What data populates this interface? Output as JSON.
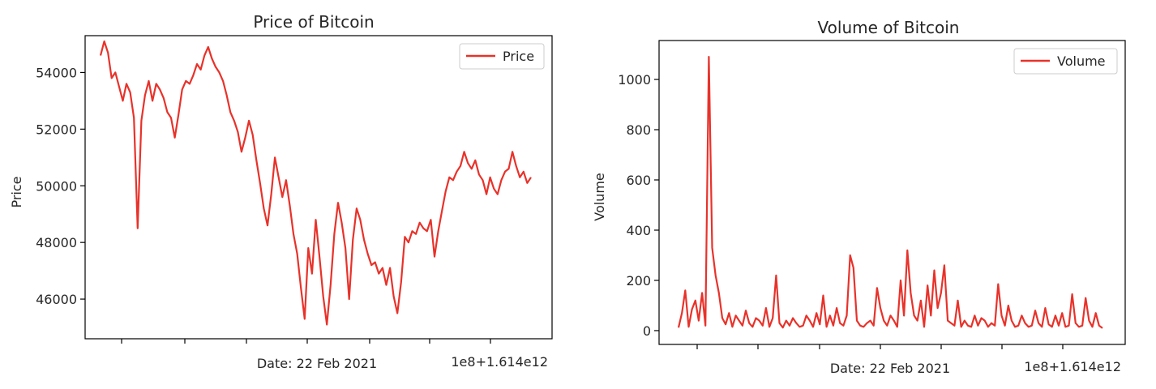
{
  "chart_data": [
    {
      "type": "line",
      "title": "Price of Bitcoin",
      "xlabel": "Date: 22 Feb 2021",
      "ylabel": "Price",
      "x_offset_label": "1e8+1.614e12",
      "yticks": [
        46000,
        48000,
        50000,
        52000,
        54000
      ],
      "ylim": [
        44600,
        55300
      ],
      "legend": "top-right",
      "grid": false,
      "series": [
        {
          "name": "Price",
          "color": "#e8322a",
          "values": [
            54600,
            55100,
            54700,
            53800,
            54000,
            53500,
            53000,
            53600,
            53300,
            52400,
            48500,
            52300,
            53200,
            53700,
            53000,
            53600,
            53400,
            53100,
            52600,
            52400,
            51700,
            52500,
            53400,
            53700,
            53600,
            53900,
            54300,
            54100,
            54600,
            54900,
            54500,
            54200,
            54000,
            53700,
            53200,
            52600,
            52300,
            51900,
            51200,
            51700,
            52300,
            51800,
            50900,
            50100,
            49200,
            48600,
            49700,
            51000,
            50300,
            49600,
            50200,
            49300,
            48300,
            47600,
            46400,
            45300,
            47800,
            46900,
            48800,
            47500,
            46100,
            45100,
            46500,
            48300,
            49400,
            48700,
            47800,
            46000,
            48100,
            49200,
            48800,
            48100,
            47600,
            47200,
            47300,
            46900,
            47100,
            46500,
            47100,
            46100,
            45500,
            46600,
            48200,
            48000,
            48400,
            48300,
            48700,
            48500,
            48400,
            48800,
            47500,
            48400,
            49100,
            49800,
            50300,
            50200,
            50500,
            50700,
            51200,
            50800,
            50600,
            50900,
            50400,
            50200,
            49700,
            50300,
            49900,
            49700,
            50200,
            50500,
            50600,
            51200,
            50700,
            50300,
            50500,
            50100,
            50300
          ]
        }
      ]
    },
    {
      "type": "line",
      "title": "Volume of Bitcoin",
      "xlabel": "Date: 22 Feb 2021",
      "ylabel": "Volume",
      "x_offset_label": "1e8+1.614e12",
      "yticks": [
        0,
        200,
        400,
        600,
        800,
        1000
      ],
      "ylim": [
        -55,
        1155
      ],
      "legend": "top-right",
      "grid": false,
      "series": [
        {
          "name": "Volume",
          "color": "#e8322a",
          "values": [
            12,
            70,
            160,
            15,
            85,
            120,
            40,
            150,
            20,
            1090,
            330,
            220,
            150,
            50,
            25,
            70,
            15,
            60,
            40,
            20,
            80,
            30,
            15,
            50,
            40,
            20,
            90,
            15,
            50,
            220,
            30,
            12,
            40,
            20,
            50,
            30,
            15,
            20,
            60,
            40,
            15,
            70,
            25,
            140,
            15,
            60,
            20,
            90,
            30,
            20,
            60,
            300,
            250,
            40,
            20,
            15,
            30,
            40,
            20,
            170,
            90,
            40,
            20,
            60,
            40,
            15,
            200,
            60,
            320,
            150,
            60,
            40,
            120,
            15,
            180,
            60,
            240,
            90,
            150,
            260,
            40,
            30,
            20,
            120,
            15,
            40,
            20,
            15,
            60,
            20,
            50,
            40,
            15,
            30,
            20,
            185,
            60,
            20,
            100,
            40,
            15,
            20,
            60,
            30,
            15,
            20,
            80,
            30,
            15,
            90,
            25,
            15,
            60,
            20,
            70,
            15,
            20,
            145,
            30,
            15,
            20,
            130,
            40,
            15,
            70,
            20,
            10
          ]
        }
      ]
    }
  ]
}
